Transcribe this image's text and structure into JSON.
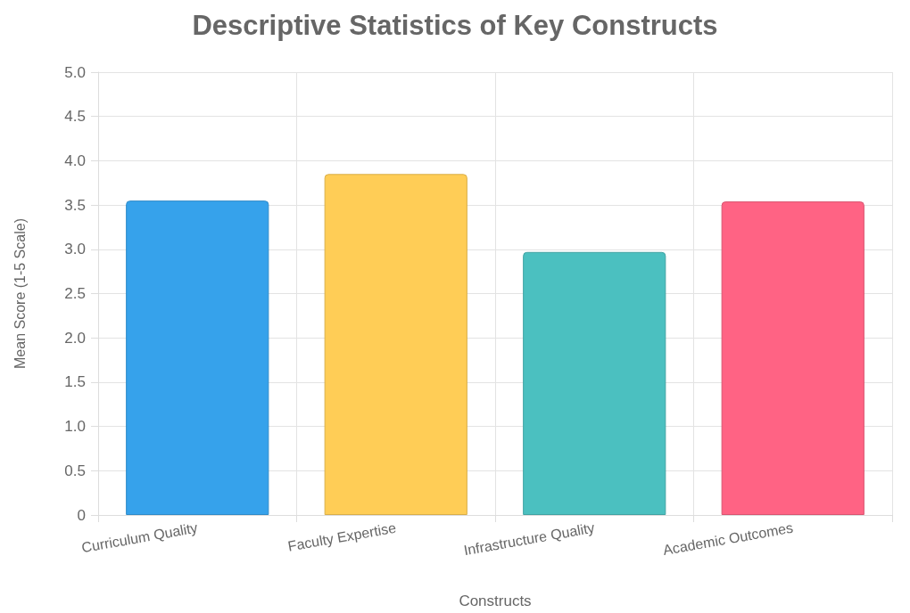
{
  "chart_data": {
    "type": "bar",
    "title": "Descriptive Statistics of Key Constructs",
    "xlabel": "Constructs",
    "ylabel": "Mean Score (1-5 Scale)",
    "categories": [
      "Curriculum Quality",
      "Faculty Expertise",
      "Infrastructure Quality",
      "Academic Outcomes"
    ],
    "values": [
      3.55,
      3.85,
      2.97,
      3.54
    ],
    "colors": [
      "#36a2eb",
      "#ffcd56",
      "#4bc0c0",
      "#ff6384"
    ],
    "ylim": [
      0,
      5
    ],
    "yticks": [
      0,
      {
        "value": 0.5,
        "label": "0.5"
      },
      {
        "value": 1,
        "label": "1.0"
      },
      {
        "value": 1.5,
        "label": "1.5"
      },
      {
        "value": 2,
        "label": "2.0"
      },
      {
        "value": 2.5,
        "label": "2.5"
      },
      {
        "value": 3,
        "label": "3.0"
      },
      {
        "value": 3.5,
        "label": "3.5"
      },
      {
        "value": 4,
        "label": "4.0"
      },
      {
        "value": 4.5,
        "label": "4.5"
      },
      {
        "value": 5,
        "label": "5.0"
      }
    ],
    "grid": true
  }
}
